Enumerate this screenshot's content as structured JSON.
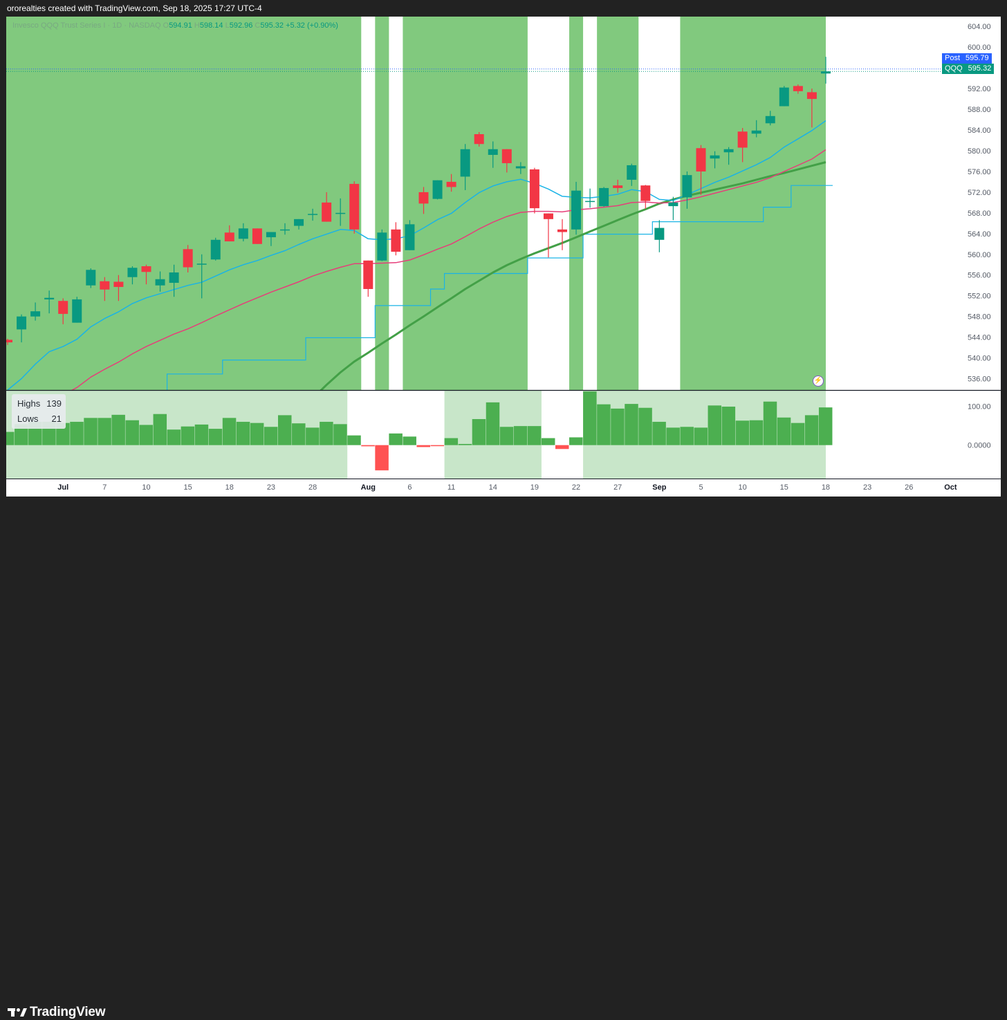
{
  "header": {
    "text": "ororealties created with TradingView.com, Sep 18, 2025 17:27 UTC-4"
  },
  "legend": {
    "title": "Invesco QQQ Trust Series I · 1D · NASDAQ",
    "o_label": "O",
    "o": "594.91",
    "h_label": "H",
    "h": "598.14",
    "l_label": "L",
    "l": "592.96",
    "c_label": "C",
    "c": "595.32",
    "change": "+5.32 (+0.90%)"
  },
  "badges": {
    "post_label": "Post",
    "post_value": "595.79",
    "qqq_label": "QQQ",
    "qqq_value": "595.32"
  },
  "highs_lows": {
    "highs_label": "Highs",
    "highs": "139",
    "lows_label": "Lows",
    "lows": "21"
  },
  "footer": {
    "brand": "TradingView"
  },
  "icons": {
    "logo": "tradingview-logo-icon",
    "flash": "lightning-icon"
  },
  "colors": {
    "up": "#089981",
    "down": "#f23645",
    "bg_green": "#81c97e",
    "ema_fast": "#1ab3e6",
    "ema_mid": "#e63e7a",
    "sma_slow": "#43a047",
    "step_line": "#1ab3e6",
    "hist_pos": "#4caf50",
    "hist_neg": "#ff5252",
    "panel_green": "#c8e6c9"
  },
  "chart_data": {
    "type": "candlestick",
    "price_axis": {
      "ticks": [
        "604.00",
        "600.00",
        "596.00",
        "592.00",
        "588.00",
        "584.00",
        "580.00",
        "576.00",
        "572.00",
        "568.00",
        "564.00",
        "560.00",
        "556.00",
        "552.00",
        "548.00",
        "544.00",
        "540.00",
        "536.00"
      ],
      "range": [
        533.8,
        605.9
      ]
    },
    "x_axis_labels": [
      {
        "label": "Jul",
        "i": 4
      },
      {
        "label": "7",
        "i": 7
      },
      {
        "label": "10",
        "i": 10
      },
      {
        "label": "15",
        "i": 13
      },
      {
        "label": "18",
        "i": 16
      },
      {
        "label": "23",
        "i": 19
      },
      {
        "label": "28",
        "i": 22
      },
      {
        "label": "Aug",
        "i": 26
      },
      {
        "label": "6",
        "i": 29
      },
      {
        "label": "11",
        "i": 32
      },
      {
        "label": "14",
        "i": 35
      },
      {
        "label": "19",
        "i": 38
      },
      {
        "label": "22",
        "i": 41
      },
      {
        "label": "27",
        "i": 44
      },
      {
        "label": "Sep",
        "i": 47
      },
      {
        "label": "5",
        "i": 50
      },
      {
        "label": "10",
        "i": 53
      },
      {
        "label": "15",
        "i": 56
      },
      {
        "label": "18",
        "i": 59
      },
      {
        "label": "23",
        "i": 62
      },
      {
        "label": "26",
        "i": 65
      },
      {
        "label": "Oct",
        "i": 68
      }
    ],
    "candles": [
      {
        "o": 543.5,
        "h": 543.7,
        "l": 542.5,
        "c": 543.0
      },
      {
        "o": 545.5,
        "h": 548.4,
        "l": 543.0,
        "c": 548.0
      },
      {
        "o": 548.0,
        "h": 550.7,
        "l": 547.2,
        "c": 549.0
      },
      {
        "o": 551.3,
        "h": 553.0,
        "l": 548.6,
        "c": 551.6
      },
      {
        "o": 551.0,
        "h": 551.5,
        "l": 546.5,
        "c": 548.5
      },
      {
        "o": 546.8,
        "h": 551.8,
        "l": 546.8,
        "c": 551.3
      },
      {
        "o": 554.0,
        "h": 557.3,
        "l": 553.5,
        "c": 557.0
      },
      {
        "o": 554.8,
        "h": 555.6,
        "l": 551.0,
        "c": 553.2
      },
      {
        "o": 554.7,
        "h": 556.0,
        "l": 551.0,
        "c": 553.7
      },
      {
        "o": 555.6,
        "h": 557.7,
        "l": 554.2,
        "c": 557.4
      },
      {
        "o": 557.7,
        "h": 558.0,
        "l": 554.2,
        "c": 556.6
      },
      {
        "o": 554.0,
        "h": 556.7,
        "l": 552.8,
        "c": 555.2
      },
      {
        "o": 554.5,
        "h": 558.0,
        "l": 551.8,
        "c": 556.5
      },
      {
        "o": 561.0,
        "h": 561.8,
        "l": 556.5,
        "c": 557.5
      },
      {
        "o": 558.2,
        "h": 560.0,
        "l": 551.5,
        "c": 558.2
      },
      {
        "o": 559.0,
        "h": 563.2,
        "l": 558.8,
        "c": 562.8
      },
      {
        "o": 564.2,
        "h": 565.6,
        "l": 562.5,
        "c": 562.5
      },
      {
        "o": 563.0,
        "h": 566.0,
        "l": 562.5,
        "c": 565.0
      },
      {
        "o": 565.0,
        "h": 565.0,
        "l": 562.0,
        "c": 562.0
      },
      {
        "o": 563.3,
        "h": 564.3,
        "l": 561.6,
        "c": 564.3
      },
      {
        "o": 564.8,
        "h": 566.0,
        "l": 563.8,
        "c": 564.8
      },
      {
        "o": 565.5,
        "h": 566.8,
        "l": 564.8,
        "c": 566.8
      },
      {
        "o": 567.8,
        "h": 568.8,
        "l": 566.5,
        "c": 567.8
      },
      {
        "o": 570.0,
        "h": 572.0,
        "l": 566.3,
        "c": 566.3
      },
      {
        "o": 568.0,
        "h": 570.8,
        "l": 565.5,
        "c": 568.0
      },
      {
        "o": 573.6,
        "h": 574.1,
        "l": 564.0,
        "c": 564.8
      },
      {
        "o": 558.8,
        "h": 558.8,
        "l": 551.8,
        "c": 553.3
      },
      {
        "o": 558.8,
        "h": 564.8,
        "l": 558.7,
        "c": 564.2
      },
      {
        "o": 564.8,
        "h": 566.2,
        "l": 559.8,
        "c": 560.5
      },
      {
        "o": 560.8,
        "h": 566.6,
        "l": 560.8,
        "c": 565.8
      },
      {
        "o": 572.0,
        "h": 573.0,
        "l": 567.8,
        "c": 569.8
      },
      {
        "o": 570.7,
        "h": 574.3,
        "l": 570.6,
        "c": 574.3
      },
      {
        "o": 574.0,
        "h": 575.5,
        "l": 572.1,
        "c": 573.0
      },
      {
        "o": 575.0,
        "h": 581.3,
        "l": 572.4,
        "c": 580.3
      },
      {
        "o": 583.2,
        "h": 583.6,
        "l": 580.8,
        "c": 581.3
      },
      {
        "o": 579.2,
        "h": 581.8,
        "l": 576.7,
        "c": 580.3
      },
      {
        "o": 580.3,
        "h": 580.3,
        "l": 575.8,
        "c": 577.6
      },
      {
        "o": 576.6,
        "h": 577.8,
        "l": 575.5,
        "c": 577.0
      },
      {
        "o": 576.4,
        "h": 576.7,
        "l": 567.9,
        "c": 568.9
      },
      {
        "o": 567.9,
        "h": 567.9,
        "l": 559.4,
        "c": 566.8
      },
      {
        "o": 564.8,
        "h": 566.8,
        "l": 560.8,
        "c": 564.3
      },
      {
        "o": 564.8,
        "h": 574.0,
        "l": 563.8,
        "c": 572.3
      },
      {
        "o": 570.3,
        "h": 572.7,
        "l": 569.0,
        "c": 570.3
      },
      {
        "o": 569.3,
        "h": 573.0,
        "l": 569.2,
        "c": 572.8
      },
      {
        "o": 573.3,
        "h": 574.4,
        "l": 571.9,
        "c": 572.8
      },
      {
        "o": 574.4,
        "h": 577.5,
        "l": 573.2,
        "c": 577.2
      },
      {
        "o": 573.3,
        "h": 573.4,
        "l": 568.8,
        "c": 570.3
      },
      {
        "o": 562.8,
        "h": 566.6,
        "l": 560.4,
        "c": 565.1
      },
      {
        "o": 569.3,
        "h": 571.1,
        "l": 566.6,
        "c": 570.0
      },
      {
        "o": 571.0,
        "h": 576.0,
        "l": 568.8,
        "c": 575.3
      },
      {
        "o": 580.5,
        "h": 581.1,
        "l": 571.5,
        "c": 576.0
      },
      {
        "o": 578.5,
        "h": 579.9,
        "l": 576.6,
        "c": 579.1
      },
      {
        "o": 579.7,
        "h": 580.7,
        "l": 577.3,
        "c": 580.3
      },
      {
        "o": 583.7,
        "h": 584.4,
        "l": 577.8,
        "c": 580.6
      },
      {
        "o": 583.3,
        "h": 585.9,
        "l": 582.6,
        "c": 583.9
      },
      {
        "o": 585.3,
        "h": 587.7,
        "l": 584.9,
        "c": 586.7
      },
      {
        "o": 588.6,
        "h": 592.5,
        "l": 588.6,
        "c": 592.2
      },
      {
        "o": 592.5,
        "h": 592.8,
        "l": 591.0,
        "c": 591.5
      },
      {
        "o": 591.3,
        "h": 592.0,
        "l": 584.5,
        "c": 590.0
      },
      {
        "o": 594.91,
        "h": 598.14,
        "l": 592.96,
        "c": 595.32
      }
    ],
    "ema_fast": [
      533.8,
      536.0,
      538.8,
      541.2,
      542.2,
      543.6,
      546.0,
      547.6,
      548.9,
      550.5,
      551.6,
      552.4,
      553.2,
      554.0,
      554.6,
      555.8,
      557.0,
      558.0,
      558.8,
      559.8,
      560.7,
      561.9,
      563.0,
      563.9,
      564.8,
      564.6,
      563.0,
      562.8,
      563.0,
      563.6,
      565.1,
      566.7,
      567.9,
      570.0,
      571.9,
      573.2,
      574.0,
      574.5,
      573.7,
      572.6,
      571.2,
      571.0,
      570.9,
      571.2,
      571.6,
      572.5,
      572.1,
      570.6,
      570.4,
      571.5,
      572.7,
      573.9,
      574.9,
      576.1,
      577.3,
      578.7,
      580.7,
      582.3,
      583.9,
      585.8
    ],
    "ema_mid": [
      525.8,
      527.5,
      529.5,
      531.5,
      532.8,
      534.3,
      536.3,
      537.8,
      539.2,
      540.8,
      542.2,
      543.4,
      544.6,
      545.6,
      546.8,
      548.1,
      549.3,
      550.5,
      551.6,
      552.7,
      553.7,
      554.7,
      555.8,
      556.7,
      557.5,
      558.2,
      558.2,
      558.3,
      558.4,
      558.9,
      559.9,
      561.0,
      562.0,
      563.4,
      564.9,
      566.2,
      567.3,
      568.1,
      568.3,
      568.3,
      568.2,
      568.6,
      568.8,
      569.1,
      569.4,
      570.0,
      570.1,
      569.9,
      570.0,
      570.5,
      571.1,
      571.8,
      572.5,
      573.2,
      573.9,
      574.8,
      576.0,
      577.2,
      578.4,
      580.2
    ],
    "sma_slow": [
      null,
      null,
      null,
      null,
      null,
      null,
      null,
      null,
      null,
      null,
      null,
      null,
      null,
      null,
      null,
      null,
      null,
      518.0,
      521.0,
      524.0,
      526.8,
      529.5,
      532.2,
      534.8,
      537.2,
      539.3,
      541.0,
      542.8,
      544.5,
      546.3,
      548.0,
      549.8,
      551.5,
      553.3,
      554.9,
      556.5,
      557.9,
      559.1,
      560.2,
      561.2,
      562.2,
      563.3,
      564.4,
      565.5,
      566.6,
      567.7,
      568.7,
      569.8,
      570.6,
      571.3,
      571.9,
      572.5,
      573.1,
      573.7,
      574.4,
      575.1,
      575.7,
      576.4,
      577.1,
      577.8
    ],
    "step_line": [
      525.8,
      525.8,
      525.8,
      525.8,
      525.8,
      525.8,
      525.8,
      525.8,
      525.8,
      525.8,
      525.8,
      525.8,
      536.9,
      536.9,
      536.9,
      536.9,
      539.6,
      539.6,
      539.6,
      539.6,
      539.6,
      539.6,
      543.9,
      543.9,
      543.9,
      543.9,
      543.9,
      550.1,
      550.1,
      550.1,
      550.1,
      553.3,
      556.3,
      556.3,
      556.3,
      556.3,
      556.3,
      556.3,
      559.3,
      559.3,
      559.3,
      559.3,
      563.9,
      563.9,
      563.9,
      563.9,
      563.9,
      566.3,
      566.3,
      566.3,
      566.3,
      566.3,
      566.3,
      566.3,
      566.3,
      569.1,
      569.1,
      573.3,
      573.3,
      573.3
    ],
    "background_zones": [
      {
        "from": -0.5,
        "to": 25.5
      },
      {
        "from": 26.5,
        "to": 27.5
      },
      {
        "from": 28.5,
        "to": 37.5
      },
      {
        "from": 40.5,
        "to": 41.5
      },
      {
        "from": 42.5,
        "to": 45.5
      },
      {
        "from": 48.5,
        "to": 59.5
      }
    ],
    "indicator": {
      "ticks": [
        "100.00",
        "0.0000"
      ],
      "range": [
        -86,
        140
      ],
      "values": [
        34,
        54,
        60,
        60,
        57,
        60,
        70,
        70,
        78,
        64,
        52,
        80,
        40,
        48,
        53,
        42,
        70,
        60,
        57,
        47,
        77,
        56,
        45,
        60,
        54,
        25,
        -3,
        -65,
        30,
        22,
        -5,
        -2,
        18,
        3,
        67,
        110,
        47,
        49,
        49,
        18,
        -10,
        20,
        138,
        105,
        94,
        106,
        96,
        60,
        45,
        47,
        45,
        102,
        99,
        63,
        64,
        112,
        71,
        57,
        77,
        97
      ],
      "zones": [
        {
          "from": -0.5,
          "to": 24.5
        },
        {
          "from": 31.5,
          "to": 38.5
        },
        {
          "from": 41.5,
          "to": 59.5
        }
      ]
    }
  }
}
